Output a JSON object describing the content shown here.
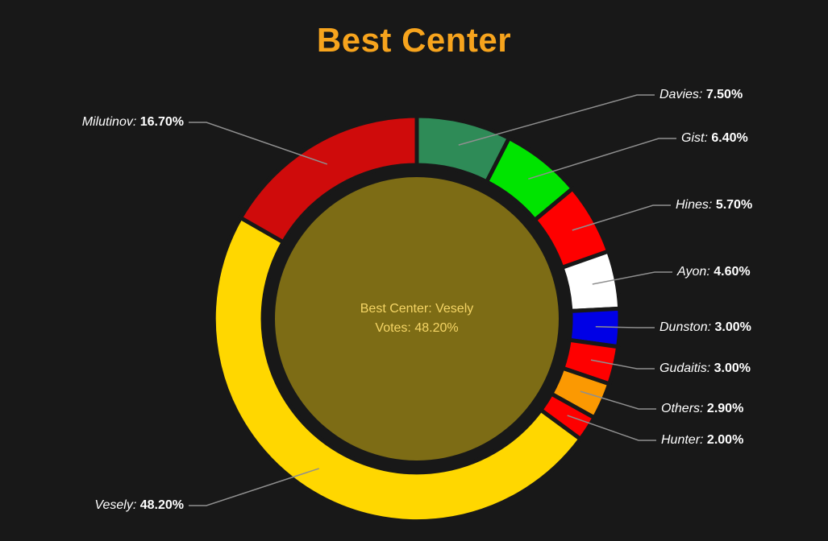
{
  "title": "Best Center",
  "colors": {
    "background": "#181818",
    "title": "#f7a41d",
    "label_text": "#ffffff",
    "leader_line": "#8f8f8f",
    "center_fill": "#7d6c15",
    "center_text": "#f5d565"
  },
  "center_label": {
    "line1": "Best Center: Vesely",
    "line2": "Votes: 48.20%"
  },
  "chart_data": {
    "type": "pie",
    "subtype": "donut",
    "title": "Best Center",
    "units": "%",
    "start_angle_deg": 0,
    "direction": "clockwise",
    "legend_position": "none",
    "segments": [
      {
        "name": "Davies",
        "value": 7.5,
        "label": "Davies:",
        "value_label": "7.50%",
        "color": "#2e8b57"
      },
      {
        "name": "Gist",
        "value": 6.4,
        "label": "Gist:",
        "value_label": "6.40%",
        "color": "#00e400"
      },
      {
        "name": "Hines",
        "value": 5.7,
        "label": "Hines:",
        "value_label": "5.70%",
        "color": "#fe0000"
      },
      {
        "name": "Ayon",
        "value": 4.6,
        "label": "Ayon:",
        "value_label": "4.60%",
        "color": "#ffffff"
      },
      {
        "name": "Dunston",
        "value": 3.0,
        "label": "Dunston:",
        "value_label": "3.00%",
        "color": "#0000e6"
      },
      {
        "name": "Gudaitis",
        "value": 3.0,
        "label": "Gudaitis:",
        "value_label": "3.00%",
        "color": "#fe0000"
      },
      {
        "name": "Others",
        "value": 2.9,
        "label": "Others:",
        "value_label": "2.90%",
        "color": "#fb9902"
      },
      {
        "name": "Hunter",
        "value": 2.0,
        "label": "Hunter:",
        "value_label": "2.00%",
        "color": "#fe0000"
      },
      {
        "name": "Vesely",
        "value": 48.2,
        "label": "Vesely:",
        "value_label": "48.20%",
        "color": "#ffd700"
      },
      {
        "name": "Milutinov",
        "value": 16.7,
        "label": "Milutinov:",
        "value_label": "16.70%",
        "color": "#cf0b0b"
      }
    ]
  }
}
